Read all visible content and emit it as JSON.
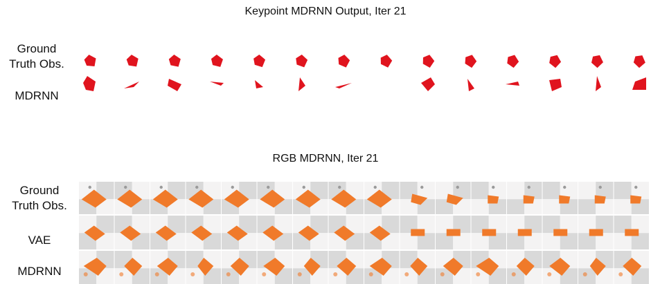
{
  "titles": {
    "keypoint": "Keypoint MDRNN Output, Iter 21",
    "rgb": "RGB MDRNN, Iter 21"
  },
  "keypoint_rows": {
    "ground_truth_label": "Ground\nTruth Obs.",
    "mdrnn_label": "MDRNN",
    "color": "#e0141e",
    "frame_count": 14
  },
  "rgb_rows": {
    "ground_truth_label": "Ground\nTruth Obs.",
    "vae_label": "VAE",
    "mdrnn_label": "MDRNN",
    "object_color": "#f07a2a",
    "checker_light": "#f4f3f3",
    "checker_dark": "#d9d9d9",
    "frame_count": 16
  }
}
